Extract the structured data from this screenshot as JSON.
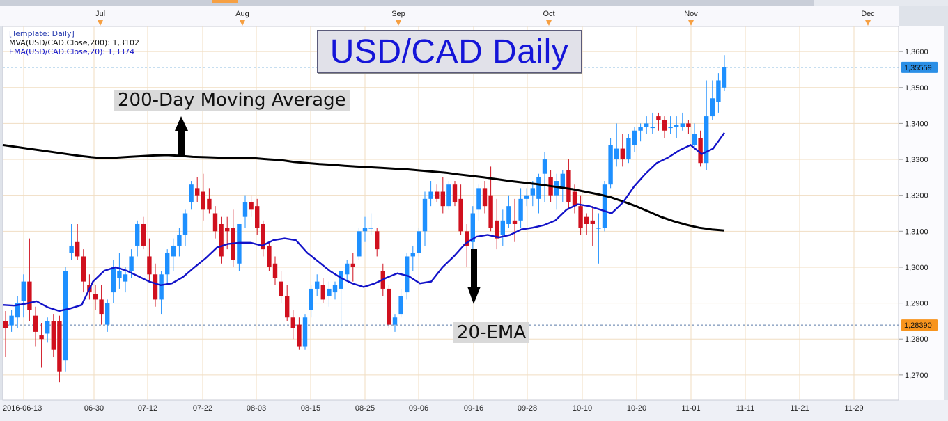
{
  "chart_data": {
    "type": "candlestick",
    "title": "USD/CAD Daily",
    "template_label": "[Template: Daily]",
    "indicators": [
      {
        "label": "MVA(USD/CAD.Close,200): 1,3102",
        "color": "#000000"
      },
      {
        "label": "EMA(USD/CAD.Close,20): 1,3374",
        "color": "#1212c8"
      }
    ],
    "ylim": [
      1.263,
      1.367
    ],
    "y_ticks": [
      "1,3600",
      "1,3500",
      "1,3400",
      "1,3300",
      "1,3200",
      "1,3100",
      "1,3000",
      "1,2900",
      "1,2800",
      "1,2700"
    ],
    "y_tick_values": [
      1.36,
      1.35,
      1.34,
      1.33,
      1.32,
      1.31,
      1.3,
      1.29,
      1.28,
      1.27
    ],
    "x_ticks": [
      "2016-06-13",
      "06-30",
      "07-12",
      "07-22",
      "08-03",
      "08-15",
      "08-25",
      "09-06",
      "09-16",
      "09-28",
      "10-10",
      "10-20",
      "11-01",
      "11-11",
      "11-21",
      "11-29"
    ],
    "month_labels": [
      "Jul",
      "Aug",
      "Sep",
      "Oct",
      "Nov",
      "Dec"
    ],
    "price_tags": [
      {
        "label": "1,35559",
        "value": 1.35559,
        "color": "#2b8fe6"
      },
      {
        "label": "1,28390",
        "value": 1.2839,
        "color": "#f7941d"
      }
    ],
    "annotations": [
      {
        "label": "200-Day Moving Average"
      },
      {
        "label": "20-EMA"
      }
    ],
    "up_color": "#1e90ff",
    "down_color": "#d0101e",
    "candles": [
      {
        "o": 1.285,
        "h": 1.2878,
        "l": 1.275,
        "c": 1.283
      },
      {
        "o": 1.2838,
        "h": 1.288,
        "l": 1.282,
        "c": 1.2865
      },
      {
        "o": 1.286,
        "h": 1.292,
        "l": 1.283,
        "c": 1.29
      },
      {
        "o": 1.2905,
        "h": 1.298,
        "l": 1.286,
        "c": 1.296
      },
      {
        "o": 1.296,
        "h": 1.308,
        "l": 1.285,
        "c": 1.288
      },
      {
        "o": 1.2865,
        "h": 1.289,
        "l": 1.278,
        "c": 1.282
      },
      {
        "o": 1.281,
        "h": 1.2845,
        "l": 1.272,
        "c": 1.28
      },
      {
        "o": 1.2815,
        "h": 1.286,
        "l": 1.279,
        "c": 1.285
      },
      {
        "o": 1.285,
        "h": 1.287,
        "l": 1.275,
        "c": 1.277
      },
      {
        "o": 1.285,
        "h": 1.2865,
        "l": 1.268,
        "c": 1.271
      },
      {
        "o": 1.274,
        "h": 1.3,
        "l": 1.271,
        "c": 1.299
      },
      {
        "o": 1.304,
        "h": 1.312,
        "l": 1.302,
        "c": 1.306
      },
      {
        "o": 1.307,
        "h": 1.312,
        "l": 1.302,
        "c": 1.303
      },
      {
        "o": 1.303,
        "h": 1.305,
        "l": 1.293,
        "c": 1.296
      },
      {
        "o": 1.295,
        "h": 1.298,
        "l": 1.291,
        "c": 1.293
      },
      {
        "o": 1.2925,
        "h": 1.295,
        "l": 1.288,
        "c": 1.291
      },
      {
        "o": 1.291,
        "h": 1.295,
        "l": 1.284,
        "c": 1.287
      },
      {
        "o": 1.284,
        "h": 1.291,
        "l": 1.282,
        "c": 1.29
      },
      {
        "o": 1.293,
        "h": 1.302,
        "l": 1.29,
        "c": 1.3
      },
      {
        "o": 1.297,
        "h": 1.304,
        "l": 1.294,
        "c": 1.299
      },
      {
        "o": 1.296,
        "h": 1.3,
        "l": 1.293,
        "c": 1.298
      },
      {
        "o": 1.299,
        "h": 1.305,
        "l": 1.297,
        "c": 1.303
      },
      {
        "o": 1.306,
        "h": 1.313,
        "l": 1.303,
        "c": 1.312
      },
      {
        "o": 1.312,
        "h": 1.314,
        "l": 1.305,
        "c": 1.306
      },
      {
        "o": 1.303,
        "h": 1.308,
        "l": 1.296,
        "c": 1.298
      },
      {
        "o": 1.298,
        "h": 1.301,
        "l": 1.289,
        "c": 1.291
      },
      {
        "o": 1.291,
        "h": 1.299,
        "l": 1.287,
        "c": 1.298
      },
      {
        "o": 1.298,
        "h": 1.305,
        "l": 1.295,
        "c": 1.304
      },
      {
        "o": 1.303,
        "h": 1.308,
        "l": 1.299,
        "c": 1.306
      },
      {
        "o": 1.306,
        "h": 1.311,
        "l": 1.303,
        "c": 1.309
      },
      {
        "o": 1.309,
        "h": 1.316,
        "l": 1.306,
        "c": 1.315
      },
      {
        "o": 1.318,
        "h": 1.324,
        "l": 1.316,
        "c": 1.323
      },
      {
        "o": 1.322,
        "h": 1.325,
        "l": 1.318,
        "c": 1.32
      },
      {
        "o": 1.321,
        "h": 1.326,
        "l": 1.313,
        "c": 1.316
      },
      {
        "o": 1.319,
        "h": 1.322,
        "l": 1.315,
        "c": 1.316
      },
      {
        "o": 1.315,
        "h": 1.317,
        "l": 1.308,
        "c": 1.31
      },
      {
        "o": 1.312,
        "h": 1.314,
        "l": 1.301,
        "c": 1.303
      },
      {
        "o": 1.311,
        "h": 1.314,
        "l": 1.305,
        "c": 1.31
      },
      {
        "o": 1.311,
        "h": 1.316,
        "l": 1.3,
        "c": 1.302
      },
      {
        "o": 1.301,
        "h": 1.312,
        "l": 1.299,
        "c": 1.312
      },
      {
        "o": 1.314,
        "h": 1.32,
        "l": 1.311,
        "c": 1.318
      },
      {
        "o": 1.318,
        "h": 1.32,
        "l": 1.314,
        "c": 1.316
      },
      {
        "o": 1.317,
        "h": 1.319,
        "l": 1.309,
        "c": 1.311
      },
      {
        "o": 1.312,
        "h": 1.313,
        "l": 1.303,
        "c": 1.305
      },
      {
        "o": 1.306,
        "h": 1.307,
        "l": 1.299,
        "c": 1.3
      },
      {
        "o": 1.301,
        "h": 1.303,
        "l": 1.295,
        "c": 1.297
      },
      {
        "o": 1.296,
        "h": 1.299,
        "l": 1.29,
        "c": 1.292
      },
      {
        "o": 1.292,
        "h": 1.295,
        "l": 1.285,
        "c": 1.286
      },
      {
        "o": 1.286,
        "h": 1.288,
        "l": 1.28,
        "c": 1.283
      },
      {
        "o": 1.284,
        "h": 1.286,
        "l": 1.277,
        "c": 1.278
      },
      {
        "o": 1.278,
        "h": 1.287,
        "l": 1.277,
        "c": 1.286
      },
      {
        "o": 1.288,
        "h": 1.295,
        "l": 1.286,
        "c": 1.294
      },
      {
        "o": 1.294,
        "h": 1.298,
        "l": 1.292,
        "c": 1.296
      },
      {
        "o": 1.295,
        "h": 1.297,
        "l": 1.29,
        "c": 1.291
      },
      {
        "o": 1.292,
        "h": 1.296,
        "l": 1.289,
        "c": 1.294
      },
      {
        "o": 1.293,
        "h": 1.296,
        "l": 1.291,
        "c": 1.295
      },
      {
        "o": 1.294,
        "h": 1.298,
        "l": 1.283,
        "c": 1.299
      },
      {
        "o": 1.298,
        "h": 1.302,
        "l": 1.296,
        "c": 1.301
      },
      {
        "o": 1.301,
        "h": 1.304,
        "l": 1.296,
        "c": 1.3
      },
      {
        "o": 1.303,
        "h": 1.311,
        "l": 1.302,
        "c": 1.31
      },
      {
        "o": 1.31,
        "h": 1.314,
        "l": 1.307,
        "c": 1.311
      },
      {
        "o": 1.311,
        "h": 1.315,
        "l": 1.309,
        "c": 1.311
      },
      {
        "o": 1.31,
        "h": 1.311,
        "l": 1.303,
        "c": 1.305
      },
      {
        "o": 1.299,
        "h": 1.301,
        "l": 1.292,
        "c": 1.294
      },
      {
        "o": 1.294,
        "h": 1.295,
        "l": 1.283,
        "c": 1.284
      },
      {
        "o": 1.284,
        "h": 1.287,
        "l": 1.282,
        "c": 1.286
      },
      {
        "o": 1.287,
        "h": 1.294,
        "l": 1.286,
        "c": 1.292
      },
      {
        "o": 1.293,
        "h": 1.304,
        "l": 1.291,
        "c": 1.303
      },
      {
        "o": 1.303,
        "h": 1.306,
        "l": 1.299,
        "c": 1.304
      },
      {
        "o": 1.304,
        "h": 1.311,
        "l": 1.303,
        "c": 1.31
      },
      {
        "o": 1.31,
        "h": 1.321,
        "l": 1.306,
        "c": 1.319
      },
      {
        "o": 1.319,
        "h": 1.324,
        "l": 1.317,
        "c": 1.321
      },
      {
        "o": 1.321,
        "h": 1.323,
        "l": 1.318,
        "c": 1.319
      },
      {
        "o": 1.321,
        "h": 1.325,
        "l": 1.315,
        "c": 1.317
      },
      {
        "o": 1.317,
        "h": 1.324,
        "l": 1.316,
        "c": 1.323
      },
      {
        "o": 1.323,
        "h": 1.324,
        "l": 1.317,
        "c": 1.318
      },
      {
        "o": 1.319,
        "h": 1.323,
        "l": 1.309,
        "c": 1.31
      },
      {
        "o": 1.31,
        "h": 1.312,
        "l": 1.3,
        "c": 1.306
      },
      {
        "o": 1.307,
        "h": 1.317,
        "l": 1.305,
        "c": 1.315
      },
      {
        "o": 1.316,
        "h": 1.323,
        "l": 1.313,
        "c": 1.322
      },
      {
        "o": 1.322,
        "h": 1.324,
        "l": 1.315,
        "c": 1.317
      },
      {
        "o": 1.32,
        "h": 1.328,
        "l": 1.31,
        "c": 1.311
      },
      {
        "o": 1.313,
        "h": 1.319,
        "l": 1.305,
        "c": 1.308
      },
      {
        "o": 1.309,
        "h": 1.316,
        "l": 1.306,
        "c": 1.313
      },
      {
        "o": 1.312,
        "h": 1.32,
        "l": 1.311,
        "c": 1.317
      },
      {
        "o": 1.313,
        "h": 1.319,
        "l": 1.307,
        "c": 1.312
      },
      {
        "o": 1.313,
        "h": 1.322,
        "l": 1.311,
        "c": 1.319
      },
      {
        "o": 1.319,
        "h": 1.322,
        "l": 1.317,
        "c": 1.32
      },
      {
        "o": 1.32,
        "h": 1.324,
        "l": 1.317,
        "c": 1.322
      },
      {
        "o": 1.319,
        "h": 1.326,
        "l": 1.315,
        "c": 1.325
      },
      {
        "o": 1.326,
        "h": 1.332,
        "l": 1.318,
        "c": 1.33
      },
      {
        "o": 1.325,
        "h": 1.327,
        "l": 1.318,
        "c": 1.32
      },
      {
        "o": 1.32,
        "h": 1.326,
        "l": 1.316,
        "c": 1.324
      },
      {
        "o": 1.322,
        "h": 1.327,
        "l": 1.318,
        "c": 1.326
      },
      {
        "o": 1.327,
        "h": 1.33,
        "l": 1.316,
        "c": 1.318
      },
      {
        "o": 1.321,
        "h": 1.323,
        "l": 1.315,
        "c": 1.317
      },
      {
        "o": 1.317,
        "h": 1.32,
        "l": 1.309,
        "c": 1.311
      },
      {
        "o": 1.314,
        "h": 1.315,
        "l": 1.309,
        "c": 1.312
      },
      {
        "o": 1.313,
        "h": 1.317,
        "l": 1.306,
        "c": 1.312
      },
      {
        "o": 1.311,
        "h": 1.315,
        "l": 1.301,
        "c": 1.311
      },
      {
        "o": 1.311,
        "h": 1.324,
        "l": 1.31,
        "c": 1.323
      },
      {
        "o": 1.323,
        "h": 1.336,
        "l": 1.322,
        "c": 1.334
      },
      {
        "o": 1.33,
        "h": 1.34,
        "l": 1.328,
        "c": 1.333
      },
      {
        "o": 1.333,
        "h": 1.337,
        "l": 1.328,
        "c": 1.33
      },
      {
        "o": 1.33,
        "h": 1.337,
        "l": 1.329,
        "c": 1.336
      },
      {
        "o": 1.334,
        "h": 1.339,
        "l": 1.332,
        "c": 1.338
      },
      {
        "o": 1.338,
        "h": 1.34,
        "l": 1.335,
        "c": 1.339
      },
      {
        "o": 1.339,
        "h": 1.342,
        "l": 1.337,
        "c": 1.34
      },
      {
        "o": 1.339,
        "h": 1.343,
        "l": 1.337,
        "c": 1.339
      },
      {
        "o": 1.342,
        "h": 1.343,
        "l": 1.338,
        "c": 1.341
      },
      {
        "o": 1.341,
        "h": 1.342,
        "l": 1.336,
        "c": 1.338
      },
      {
        "o": 1.339,
        "h": 1.342,
        "l": 1.337,
        "c": 1.339
      },
      {
        "o": 1.339,
        "h": 1.342,
        "l": 1.336,
        "c": 1.3395
      },
      {
        "o": 1.339,
        "h": 1.343,
        "l": 1.338,
        "c": 1.34
      },
      {
        "o": 1.34,
        "h": 1.341,
        "l": 1.337,
        "c": 1.339
      },
      {
        "o": 1.334,
        "h": 1.34,
        "l": 1.333,
        "c": 1.337
      },
      {
        "o": 1.336,
        "h": 1.338,
        "l": 1.328,
        "c": 1.329
      },
      {
        "o": 1.329,
        "h": 1.352,
        "l": 1.327,
        "c": 1.342
      },
      {
        "o": 1.342,
        "h": 1.352,
        "l": 1.341,
        "c": 1.347
      },
      {
        "o": 1.346,
        "h": 1.354,
        "l": 1.343,
        "c": 1.352
      },
      {
        "o": 1.35,
        "h": 1.359,
        "l": 1.349,
        "c": 1.3556
      }
    ],
    "ma200": [
      1.334,
      1.3335,
      1.333,
      1.3325,
      1.332,
      1.3315,
      1.331,
      1.3306,
      1.3303,
      1.3305,
      1.3307,
      1.3309,
      1.3311,
      1.3312,
      1.331,
      1.3307,
      1.3306,
      1.3305,
      1.3304,
      1.3303,
      1.3303,
      1.33,
      1.3298,
      1.3293,
      1.329,
      1.3287,
      1.3285,
      1.3282,
      1.328,
      1.3278,
      1.3276,
      1.3274,
      1.3272,
      1.3269,
      1.3266,
      1.3263,
      1.3258,
      1.3254,
      1.325,
      1.3245,
      1.324,
      1.3236,
      1.3232,
      1.3227,
      1.3222,
      1.3217,
      1.321,
      1.3203,
      1.3195,
      1.3183,
      1.317,
      1.3155,
      1.314,
      1.3128,
      1.3118,
      1.311,
      1.3105,
      1.3102
    ],
    "ema20": [
      1.2895,
      1.2893,
      1.2898,
      1.2905,
      1.2888,
      1.2878,
      1.2885,
      1.2895,
      1.296,
      1.299,
      1.3,
      1.299,
      1.2975,
      1.296,
      1.295,
      1.2955,
      1.2973,
      1.3,
      1.3025,
      1.3055,
      1.3065,
      1.3068,
      1.3068,
      1.306,
      1.3075,
      1.308,
      1.3075,
      1.304,
      1.3015,
      1.299,
      1.297,
      1.2955,
      1.2945,
      1.2955,
      1.297,
      1.2983,
      1.2975,
      1.2955,
      1.296,
      1.3,
      1.303,
      1.3065,
      1.3085,
      1.309,
      1.3083,
      1.309,
      1.3105,
      1.311,
      1.3117,
      1.313,
      1.316,
      1.3175,
      1.317,
      1.316,
      1.315,
      1.318,
      1.3225,
      1.326,
      1.329,
      1.3305,
      1.3325,
      1.334,
      1.3315,
      1.333,
      1.3374
    ]
  }
}
